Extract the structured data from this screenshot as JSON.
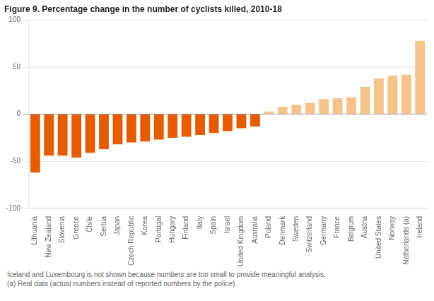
{
  "chart_data": {
    "type": "bar",
    "title": "Figure 9. Percentage change in the number of cyclists killed, 2010-18",
    "categories": [
      "Lithuania",
      "New Zealand",
      "Slovenia",
      "Greece",
      "Chile",
      "Serbia",
      "Japan",
      "Czech Republic",
      "Korea",
      "Portugal",
      "Hungary",
      "Finland",
      "Italy",
      "Spain",
      "Israel",
      "United Kingdom",
      "Australia",
      "Poland",
      "Denmark",
      "Sweden",
      "Switzerland",
      "Germany",
      "France",
      "Belgium",
      "Austria",
      "United States",
      "Norway",
      "Netherlands (a)",
      "Ireland"
    ],
    "values": [
      -62,
      -44,
      -44,
      -46,
      -41,
      -37,
      -32,
      -30,
      -29,
      -27,
      -25,
      -24,
      -22,
      -20,
      -18,
      -15,
      -13,
      3,
      8,
      10,
      12,
      16,
      17,
      18,
      29,
      38,
      41,
      42,
      78
    ],
    "colors": [
      "#e55c00",
      "#e55c00",
      "#e55c00",
      "#e55c00",
      "#e55c00",
      "#e55c00",
      "#e55c00",
      "#e55c00",
      "#e55c00",
      "#e55c00",
      "#e55c00",
      "#e55c00",
      "#e55c00",
      "#e55c00",
      "#e55c00",
      "#e55c00",
      "#e55c00",
      "#f5c48a",
      "#f5c48a",
      "#f5c48a",
      "#f5c48a",
      "#f5c48a",
      "#f5c48a",
      "#f5c48a",
      "#f5c48a",
      "#f5c48a",
      "#f5c48a",
      "#f5c48a",
      "#f5c48a"
    ],
    "ylim": [
      -100,
      100
    ],
    "yticks": [
      -100,
      -50,
      0,
      50,
      100
    ],
    "grid": true,
    "annotations": [
      "Iceland and Luxembourg is not shown because numbers are too small to provide meaningful analysis.",
      "(a) Real data (actual numbers instead of reported numbers by the police)."
    ]
  }
}
